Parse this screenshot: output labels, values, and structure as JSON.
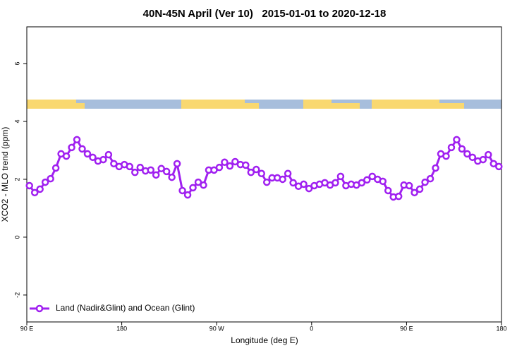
{
  "chart_data": {
    "type": "line",
    "title": "40N-45N April (Ver 10)   2015-01-01 to 2020-12-18",
    "x_label": "Longitude (deg E)",
    "y_label": "XCO2 - MLO trend (ppm)",
    "x": [
      92.5,
      97.5,
      102.5,
      107.5,
      112.5,
      117.5,
      122.5,
      127.5,
      132.5,
      137.5,
      142.5,
      147.5,
      152.5,
      157.5,
      162.5,
      167.5,
      172.5,
      177.5,
      182.5,
      187.5,
      192.5,
      197.5,
      202.5,
      207.5,
      212.5,
      217.5,
      222.5,
      227.5,
      232.5,
      237.5,
      242.5,
      247.5,
      252.5,
      257.5,
      262.5,
      267.5,
      272.5,
      277.5,
      282.5,
      287.5,
      292.5,
      297.5,
      302.5,
      307.5,
      312.5,
      317.5,
      322.5,
      327.5,
      332.5,
      337.5,
      342.5,
      347.5,
      352.5,
      357.5,
      362.5,
      367.5,
      372.5,
      377.5,
      382.5,
      387.5,
      392.5,
      397.5,
      402.5,
      407.5,
      412.5,
      417.5,
      422.5,
      427.5,
      432.5,
      437.5,
      442.5,
      447.5,
      452.5,
      457.5,
      462.5,
      467.5,
      472.5,
      477.5,
      482.5,
      487.5,
      492.5,
      497.5,
      502.5,
      507.5,
      512.5,
      517.5,
      522.5,
      527.5,
      532.5,
      537.5
    ],
    "series": [
      {
        "name": "Land (Nadir&Glint) and Ocean (Glint)",
        "color": "#a020f0",
        "values": [
          1.78,
          1.54,
          1.66,
          1.9,
          2.02,
          2.39,
          2.88,
          2.8,
          3.1,
          3.37,
          3.05,
          2.88,
          2.76,
          2.63,
          2.68,
          2.85,
          2.54,
          2.44,
          2.51,
          2.44,
          2.24,
          2.41,
          2.29,
          2.32,
          2.15,
          2.37,
          2.27,
          2.07,
          2.54,
          1.61,
          1.46,
          1.71,
          1.9,
          1.8,
          2.32,
          2.32,
          2.41,
          2.59,
          2.46,
          2.61,
          2.51,
          2.49,
          2.24,
          2.34,
          2.2,
          1.9,
          2.05,
          2.05,
          2.0,
          2.2,
          1.88,
          1.76,
          1.83,
          1.68,
          1.78,
          1.83,
          1.88,
          1.8,
          1.88,
          2.1,
          1.78,
          1.83,
          1.8,
          1.88,
          1.98,
          2.1,
          2.0,
          1.93,
          1.61,
          1.39,
          1.41,
          1.8,
          1.78,
          1.54,
          1.66,
          1.9,
          2.02,
          2.39,
          2.88,
          2.8,
          3.1,
          3.37,
          3.05,
          2.88,
          2.76,
          2.63,
          2.68,
          2.85,
          2.54,
          2.44
        ]
      }
    ],
    "xlim": [
      90,
      540
    ],
    "xticks": [
      {
        "value": 90,
        "label": "90 E"
      },
      180,
      {
        "value": 270,
        "label": "90 W"
      },
      {
        "value": 360,
        "label": "0"
      },
      {
        "value": 450,
        "label": "90 E"
      },
      {
        "value": 540,
        "label": "180"
      }
    ],
    "ylim": [
      -2.93,
      7.27
    ],
    "yticks": [
      -2,
      0,
      2,
      4,
      6
    ],
    "legend": "bottom-left"
  }
}
